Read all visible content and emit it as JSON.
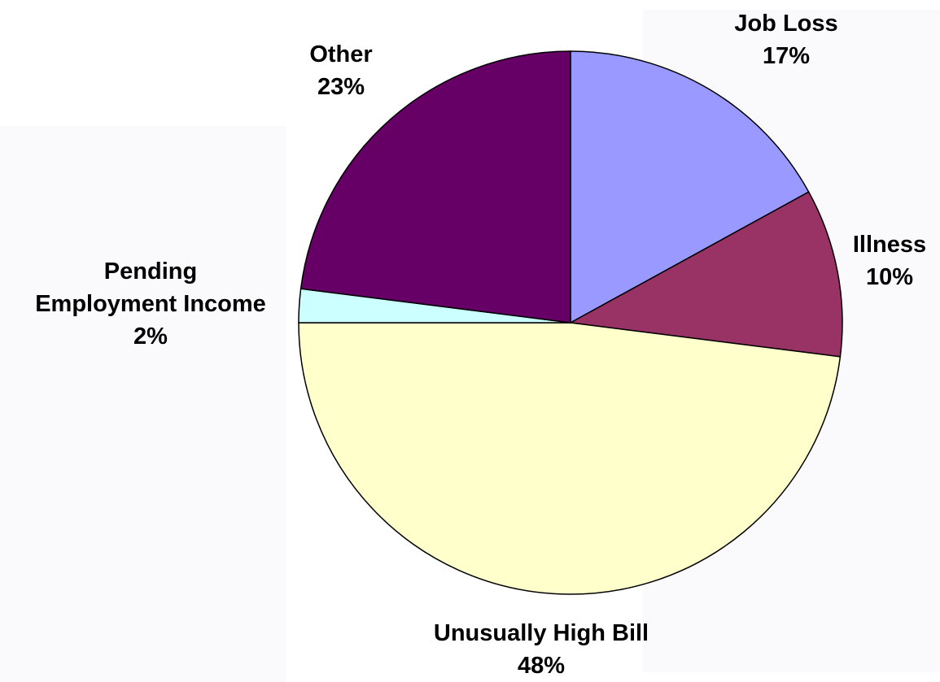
{
  "chart_data": {
    "type": "pie",
    "start_angle_deg": 0,
    "direction": "clockwise",
    "slices": [
      {
        "name": "Job Loss",
        "label": "Job Loss",
        "pct_label": "17%",
        "value": 17,
        "color": "#9999ff"
      },
      {
        "name": "Illness",
        "label": "Illness",
        "pct_label": "10%",
        "value": 10,
        "color": "#993366"
      },
      {
        "name": "Unusually High Bill",
        "label": "Unusually High Bill",
        "pct_label": "48%",
        "value": 48,
        "color": "#ffffcc"
      },
      {
        "name": "Pending Employment Income",
        "label": "Pending\nEmployment Income",
        "pct_label": "2%",
        "value": 2,
        "color": "#ccffff"
      },
      {
        "name": "Other",
        "label": "Other",
        "pct_label": "23%",
        "value": 23,
        "color": "#660066"
      }
    ]
  }
}
